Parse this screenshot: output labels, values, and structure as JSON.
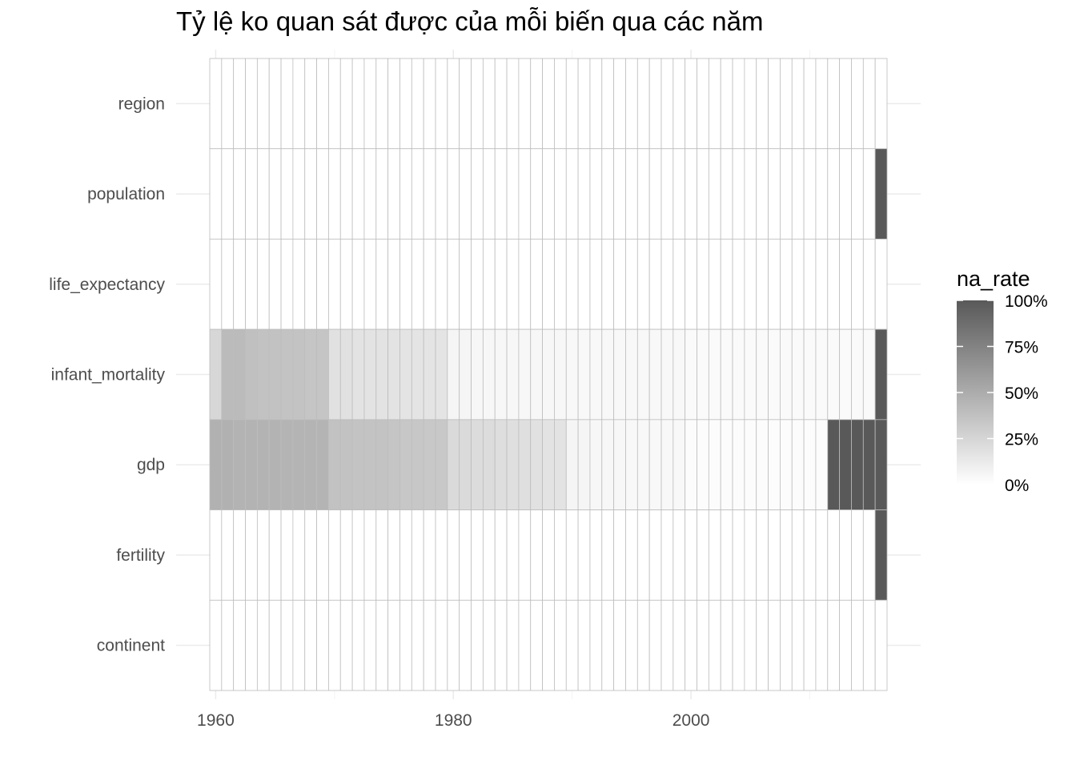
{
  "chart_data": {
    "type": "heatmap",
    "title": "Tỷ lệ ko quan sát được của mỗi biến qua các năm",
    "xlabel": "",
    "ylabel": "",
    "x_range": [
      1960,
      2016
    ],
    "x_ticks": [
      1960,
      1980,
      2000
    ],
    "y_categories": [
      "region",
      "population",
      "life_expectancy",
      "infant_mortality",
      "gdp",
      "fertility",
      "continent"
    ],
    "colors": {
      "low": "#ffffff",
      "high": "#595959",
      "grid": "#bdbdbd",
      "panel_grid": "#ebebeb"
    },
    "series": [
      {
        "name": "region",
        "values": [
          0,
          0,
          0,
          0,
          0,
          0,
          0,
          0,
          0,
          0,
          0,
          0,
          0,
          0,
          0,
          0,
          0,
          0,
          0,
          0,
          0,
          0,
          0,
          0,
          0,
          0,
          0,
          0,
          0,
          0,
          0,
          0,
          0,
          0,
          0,
          0,
          0,
          0,
          0,
          0,
          0,
          0,
          0,
          0,
          0,
          0,
          0,
          0,
          0,
          0,
          0,
          0,
          0,
          0,
          0,
          0,
          0
        ]
      },
      {
        "name": "population",
        "values": [
          0,
          0,
          0,
          0,
          0,
          0,
          0,
          0,
          0,
          0,
          0,
          0,
          0,
          0,
          0,
          0,
          0,
          0,
          0,
          0,
          0,
          0,
          0,
          0,
          0,
          0,
          0,
          0,
          0,
          0,
          0,
          0,
          0,
          0,
          0,
          0,
          0,
          0,
          0,
          0,
          0,
          0,
          0,
          0,
          0,
          0,
          0,
          0,
          0,
          0,
          0,
          0,
          0,
          0,
          0,
          0,
          1
        ]
      },
      {
        "name": "life_expectancy",
        "values": [
          0,
          0,
          0,
          0,
          0,
          0,
          0,
          0,
          0,
          0,
          0,
          0,
          0,
          0,
          0,
          0,
          0,
          0,
          0,
          0,
          0,
          0,
          0,
          0,
          0,
          0,
          0,
          0,
          0,
          0,
          0,
          0,
          0,
          0,
          0,
          0,
          0,
          0,
          0,
          0,
          0,
          0,
          0,
          0,
          0,
          0,
          0,
          0,
          0,
          0,
          0,
          0,
          0,
          0,
          0,
          0,
          0
        ]
      },
      {
        "name": "infant_mortality",
        "values": [
          0.24,
          0.41,
          0.41,
          0.38,
          0.37,
          0.37,
          0.36,
          0.36,
          0.35,
          0.35,
          0.18,
          0.18,
          0.17,
          0.17,
          0.17,
          0.17,
          0.16,
          0.16,
          0.16,
          0.16,
          0.06,
          0.06,
          0.05,
          0.05,
          0.05,
          0.05,
          0.05,
          0.05,
          0.05,
          0.05,
          0.04,
          0.04,
          0.04,
          0.04,
          0.04,
          0.04,
          0.04,
          0.04,
          0.04,
          0.04,
          0.03,
          0.03,
          0.03,
          0.03,
          0.03,
          0.03,
          0.03,
          0.03,
          0.03,
          0.03,
          0.03,
          0.03,
          0.03,
          0.03,
          0.03,
          0.03,
          1
        ]
      },
      {
        "name": "gdp",
        "values": [
          0.47,
          0.47,
          0.46,
          0.46,
          0.46,
          0.46,
          0.45,
          0.45,
          0.45,
          0.45,
          0.37,
          0.37,
          0.36,
          0.36,
          0.36,
          0.35,
          0.34,
          0.34,
          0.33,
          0.33,
          0.22,
          0.22,
          0.21,
          0.21,
          0.2,
          0.19,
          0.19,
          0.18,
          0.17,
          0.17,
          0.06,
          0.06,
          0.05,
          0.05,
          0.05,
          0.04,
          0.04,
          0.04,
          0.04,
          0.04,
          0.02,
          0.02,
          0.02,
          0.02,
          0.02,
          0.02,
          0.02,
          0.02,
          0.02,
          0.02,
          0.02,
          0.02,
          1,
          1,
          1,
          1,
          1
        ]
      },
      {
        "name": "fertility",
        "values": [
          0,
          0,
          0,
          0,
          0,
          0,
          0,
          0,
          0,
          0,
          0,
          0,
          0,
          0,
          0,
          0,
          0,
          0,
          0,
          0,
          0,
          0,
          0,
          0,
          0,
          0,
          0,
          0,
          0,
          0,
          0,
          0,
          0,
          0,
          0,
          0,
          0,
          0,
          0,
          0,
          0,
          0,
          0,
          0,
          0,
          0,
          0,
          0,
          0,
          0,
          0,
          0,
          0,
          0,
          0,
          0,
          1
        ]
      },
      {
        "name": "continent",
        "values": [
          0,
          0,
          0,
          0,
          0,
          0,
          0,
          0,
          0,
          0,
          0,
          0,
          0,
          0,
          0,
          0,
          0,
          0,
          0,
          0,
          0,
          0,
          0,
          0,
          0,
          0,
          0,
          0,
          0,
          0,
          0,
          0,
          0,
          0,
          0,
          0,
          0,
          0,
          0,
          0,
          0,
          0,
          0,
          0,
          0,
          0,
          0,
          0,
          0,
          0,
          0,
          0,
          0,
          0,
          0,
          0,
          0
        ]
      }
    ],
    "legend": {
      "title": "na_rate",
      "placement": "right",
      "breaks": [
        1,
        0.75,
        0.5,
        0.25,
        0
      ],
      "labels": [
        "100%",
        "75%",
        "50%",
        "25%",
        "0%"
      ]
    },
    "grid": true
  }
}
